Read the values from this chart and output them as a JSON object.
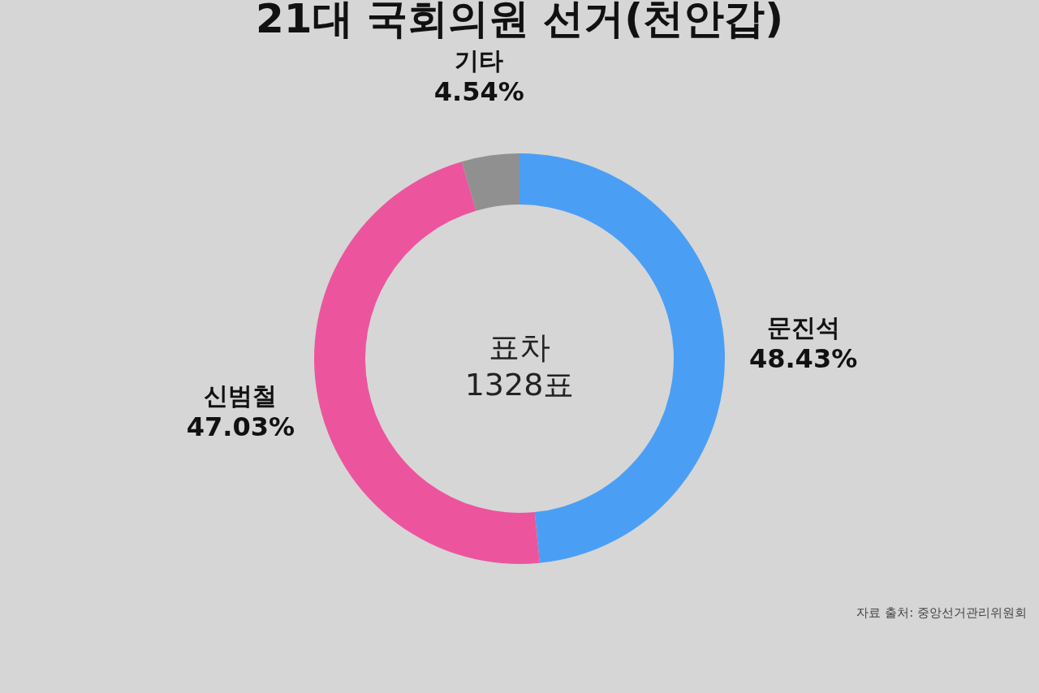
{
  "chart_data": {
    "type": "donut",
    "title": "21대 국회의원 선거(천안갑)",
    "categories": [
      "문진석",
      "신범철",
      "기타"
    ],
    "values": [
      48.43,
      47.03,
      4.54
    ],
    "colors": [
      "#4a9ff5",
      "#ec559e",
      "#909090"
    ],
    "value_labels": [
      "48.43%",
      "47.03%",
      "4.54%"
    ],
    "annotations": [
      "표차\n1328표",
      "자료 출처: 중앙선거관리위원회"
    ]
  }
}
